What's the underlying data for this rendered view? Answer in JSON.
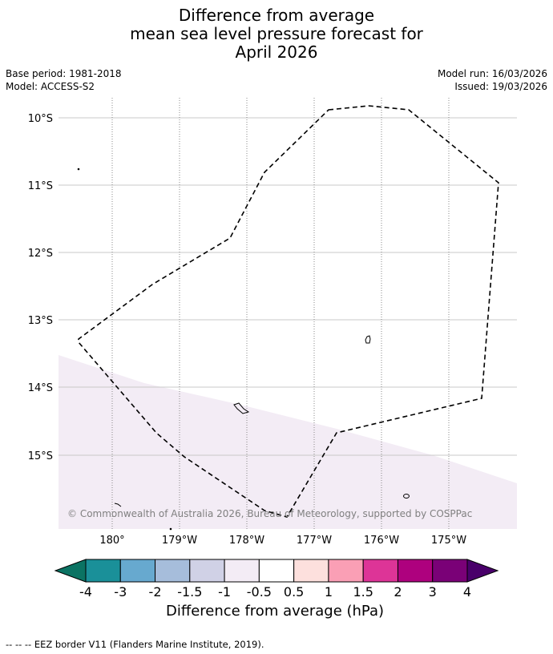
{
  "title": {
    "line1": "Difference from average",
    "line2": "mean sea level pressure forecast for",
    "line3": "April 2026"
  },
  "meta": {
    "base_period": "Base period: 1981-2018",
    "model": "Model: ACCESS-S2",
    "model_run": "Model run: 16/03/2026",
    "issued": "Issued: 19/03/2026"
  },
  "map": {
    "lat_labels": [
      "10°S",
      "11°S",
      "12°S",
      "13°S",
      "14°S",
      "15°S"
    ],
    "lon_labels": [
      "180°",
      "179°W",
      "178°W",
      "177°W",
      "176°W",
      "175°W"
    ],
    "copyright": "© Commonwealth of Australia 2026, Bureau of Meteorology, supported by COSPPac",
    "background_color": "#ffffff",
    "anomaly_fill_color": "#f3ecf5",
    "eez_color": "#000000"
  },
  "colorbar": {
    "title": "Difference from average (hPa)",
    "labels": [
      "-4",
      "-3",
      "-2",
      "-1.5",
      "-1",
      "-0.5",
      "0.5",
      "1",
      "1.5",
      "2",
      "3",
      "4"
    ],
    "colors": [
      "#0b7363",
      "#1a9099",
      "#67a9cf",
      "#a6bddb",
      "#d0d1e6",
      "#f3ecf5",
      "#ffffff",
      "#fde0dd",
      "#fa9fb5",
      "#dd3497",
      "#ae017e",
      "#7a0177",
      "#49006a"
    ]
  },
  "footnote": "--  --  -- EEZ border V11 (Flanders Marine Institute, 2019)."
}
